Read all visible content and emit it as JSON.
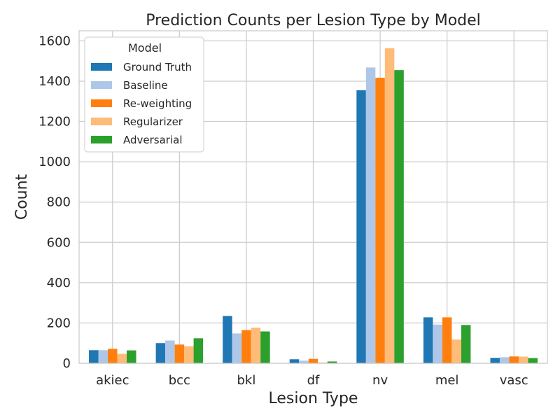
{
  "chart_data": {
    "type": "bar",
    "title": "Prediction Counts per Lesion Type by Model",
    "xlabel": "Lesion Type",
    "ylabel": "Count",
    "ylim": [
      0,
      1650
    ],
    "yticks": [
      0,
      200,
      400,
      600,
      800,
      1000,
      1200,
      1400,
      1600
    ],
    "grid": true,
    "legend": {
      "title": "Model",
      "placement": "top-left"
    },
    "categories": [
      "akiec",
      "bcc",
      "bkl",
      "df",
      "nv",
      "mel",
      "vasc"
    ],
    "series": [
      {
        "name": "Ground Truth",
        "color": "#1f77b4",
        "values": [
          65,
          100,
          235,
          20,
          1355,
          228,
          27
        ]
      },
      {
        "name": "Baseline",
        "color": "#aec7e8",
        "values": [
          65,
          113,
          148,
          13,
          1468,
          192,
          30
        ]
      },
      {
        "name": "Re-weighting",
        "color": "#ff7f0e",
        "values": [
          72,
          93,
          165,
          22,
          1417,
          228,
          34
        ]
      },
      {
        "name": "Regularizer",
        "color": "#ffbb78",
        "values": [
          47,
          85,
          177,
          4,
          1563,
          118,
          33
        ]
      },
      {
        "name": "Adversarial",
        "color": "#2ca02c",
        "values": [
          64,
          124,
          158,
          9,
          1455,
          190,
          26
        ]
      }
    ]
  }
}
